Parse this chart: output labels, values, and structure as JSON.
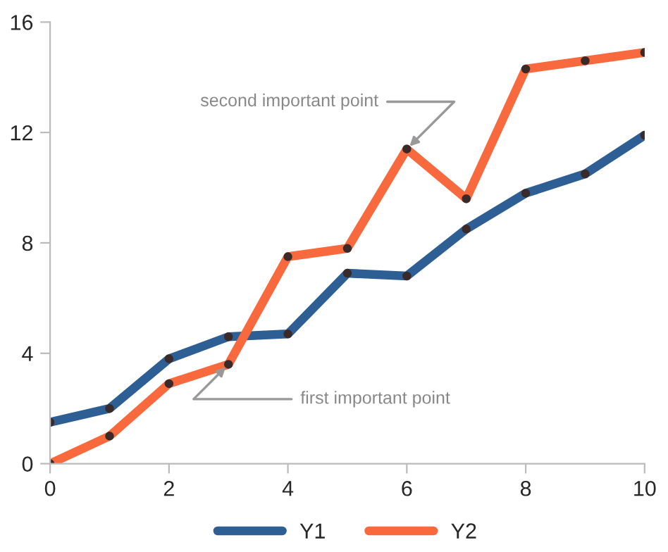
{
  "chart_data": {
    "type": "line",
    "x": [
      0,
      1,
      2,
      3,
      4,
      5,
      6,
      7,
      8,
      9,
      10
    ],
    "series": [
      {
        "name": "Y1",
        "color": "#2e5f94",
        "values": [
          1.5,
          2.0,
          3.8,
          4.6,
          4.7,
          6.9,
          6.8,
          8.5,
          9.8,
          10.5,
          11.9
        ]
      },
      {
        "name": "Y2",
        "color": "#f8693e",
        "values": [
          0,
          1.0,
          2.9,
          3.6,
          7.5,
          7.8,
          11.4,
          9.6,
          14.3,
          14.6,
          14.9
        ]
      }
    ],
    "xlim": [
      0,
      10
    ],
    "xticks": [
      0,
      2,
      4,
      6,
      8,
      10
    ],
    "ylim": [
      0,
      16
    ],
    "yticks": [
      0,
      4,
      8,
      12,
      16
    ],
    "annotations": [
      {
        "text": "second important point",
        "x": 6,
        "y": 11.4
      },
      {
        "text": "first important point",
        "x": 3,
        "y": 3.6
      }
    ],
    "legend": "bottom",
    "grid": false,
    "marker": "circle",
    "line_style": "solid"
  }
}
